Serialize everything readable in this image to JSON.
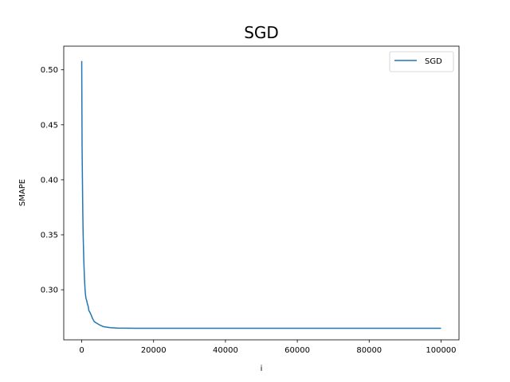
{
  "chart_data": {
    "type": "line",
    "title": "SGD",
    "xlabel": "i",
    "ylabel": "SMAPE",
    "xlim": [
      -5000,
      105000
    ],
    "ylim": [
      0.2545,
      0.5215
    ],
    "xticks": [
      0,
      20000,
      40000,
      60000,
      80000,
      100000
    ],
    "xtick_labels": [
      "0",
      "20000",
      "40000",
      "60000",
      "80000",
      "100000"
    ],
    "yticks": [
      0.3,
      0.35,
      0.4,
      0.45,
      0.5
    ],
    "ytick_labels": [
      "0.30",
      "0.35",
      "0.40",
      "0.45",
      "0.50"
    ],
    "grid": false,
    "legend": {
      "placement": "top-right",
      "entries": [
        "SGD"
      ]
    },
    "series": [
      {
        "name": "SGD",
        "color": "#1f77b4",
        "x": [
          0,
          100,
          200,
          300,
          400,
          500,
          600,
          700,
          800,
          900,
          1000,
          1200,
          1400,
          1600,
          1800,
          2000,
          2200,
          2500,
          3000,
          3500,
          4000,
          4500,
          5000,
          6000,
          7000,
          8000,
          10000,
          15000,
          20000,
          30000,
          40000,
          50000,
          60000,
          70000,
          80000,
          90000,
          100000
        ],
        "y": [
          0.508,
          0.43,
          0.4,
          0.37,
          0.35,
          0.337,
          0.325,
          0.316,
          0.308,
          0.302,
          0.297,
          0.292,
          0.29,
          0.287,
          0.285,
          0.281,
          0.28,
          0.278,
          0.274,
          0.271,
          0.27,
          0.269,
          0.268,
          0.2665,
          0.266,
          0.2655,
          0.2652,
          0.265,
          0.265,
          0.265,
          0.265,
          0.265,
          0.265,
          0.265,
          0.265,
          0.265,
          0.265
        ]
      }
    ]
  }
}
